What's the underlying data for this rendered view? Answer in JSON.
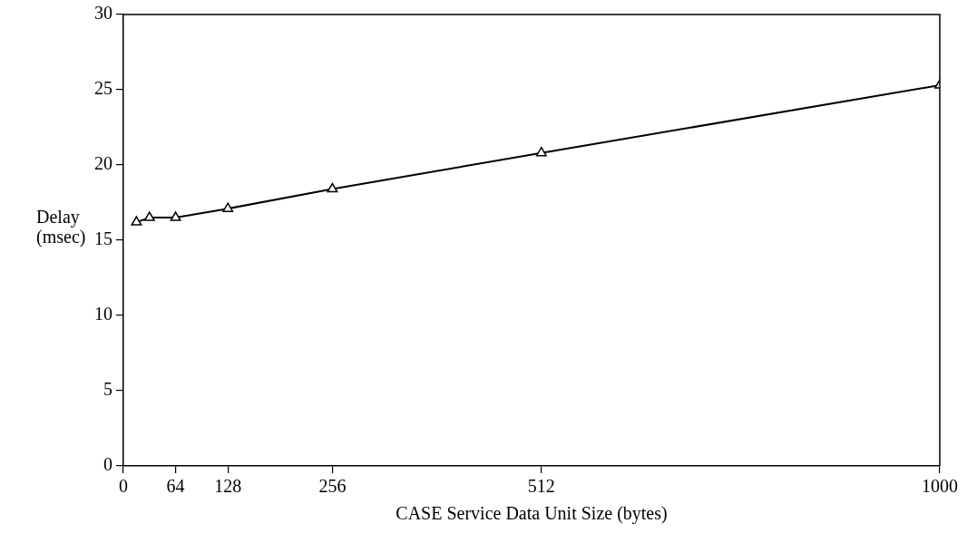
{
  "chart_data": {
    "type": "line",
    "xlabel": "CASE Service Data Unit Size (bytes)",
    "ylabel": "Delay (msec)",
    "x": [
      16,
      32,
      64,
      128,
      256,
      512,
      1000
    ],
    "series": [
      {
        "color": "#000000",
        "values": [
          16.2,
          16.5,
          16.5,
          17.1,
          18.4,
          20.8,
          25.3
        ]
      }
    ],
    "xlim": [
      0,
      1000
    ],
    "xticks": [
      0,
      64,
      128,
      256,
      512,
      1000
    ],
    "ylim": [
      0,
      30
    ],
    "yticks": [
      0,
      5,
      10,
      15,
      20,
      25,
      30
    ],
    "grid": false,
    "legend": false,
    "marker": "triangle",
    "line_style": "solid"
  }
}
